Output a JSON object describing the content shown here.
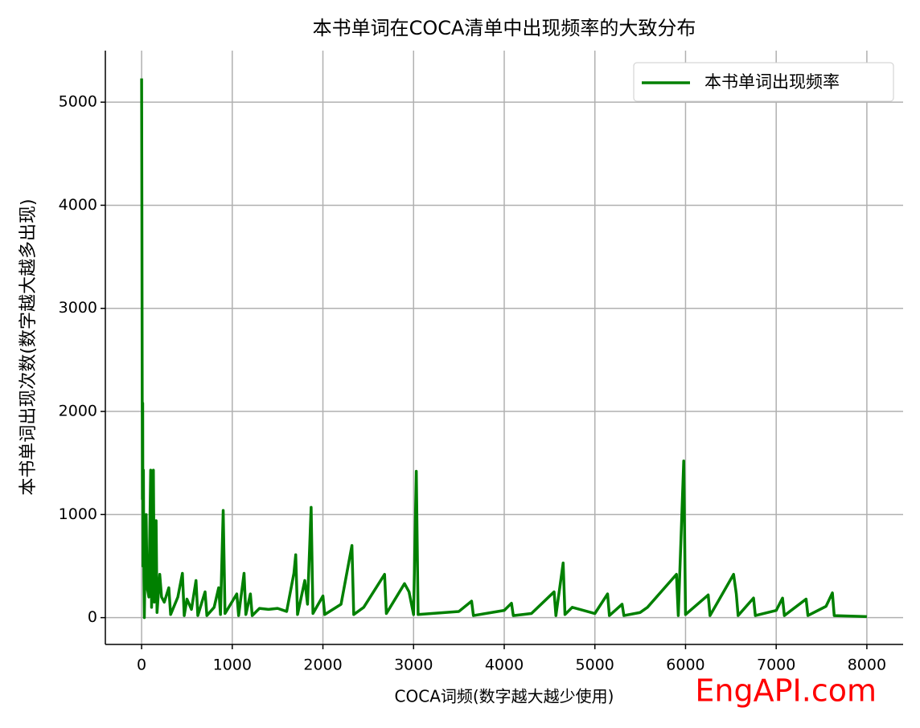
{
  "chart_data": {
    "type": "line",
    "title": "本书单词在COCA清单中出现频率的大致分布",
    "xlabel": "COCA词频(数字越大越少使用)",
    "ylabel": "本书单词出现次数(数字越大越多出现)",
    "watermark": "EngAPI.com",
    "x": [
      0,
      3,
      6,
      9,
      12,
      15,
      20,
      25,
      30,
      40,
      50,
      60,
      80,
      100,
      110,
      130,
      140,
      160,
      170,
      200,
      220,
      250,
      300,
      320,
      400,
      450,
      470,
      500,
      550,
      600,
      620,
      700,
      720,
      800,
      850,
      870,
      900,
      920,
      1050,
      1070,
      1130,
      1150,
      1200,
      1220,
      1300,
      1400,
      1500,
      1600,
      1680,
      1700,
      1720,
      1800,
      1830,
      1870,
      1890,
      2000,
      2020,
      2200,
      2320,
      2340,
      2450,
      2680,
      2700,
      2900,
      2950,
      3000,
      3030,
      3050,
      3200,
      3500,
      3640,
      3660,
      4000,
      4080,
      4100,
      4300,
      4550,
      4570,
      4650,
      4670,
      4750,
      5000,
      5140,
      5160,
      5300,
      5320,
      5500,
      5580,
      5900,
      5920,
      5980,
      6000,
      6250,
      6270,
      6530,
      6560,
      6580,
      6750,
      6770,
      7000,
      7070,
      7090,
      7330,
      7350,
      7550,
      7620,
      7640,
      8000
    ],
    "series": [
      {
        "name": "本书单词出现频率",
        "color": "#008000",
        "values": [
          5230,
          4000,
          2470,
          1150,
          2080,
          500,
          1430,
          400,
          0,
          600,
          1000,
          300,
          200,
          1430,
          100,
          1430,
          150,
          940,
          50,
          420,
          200,
          150,
          290,
          30,
          200,
          430,
          20,
          180,
          80,
          360,
          20,
          250,
          20,
          100,
          290,
          30,
          1040,
          40,
          230,
          20,
          430,
          30,
          230,
          20,
          90,
          80,
          90,
          60,
          430,
          610,
          30,
          360,
          130,
          1070,
          40,
          210,
          30,
          130,
          700,
          30,
          100,
          420,
          40,
          330,
          250,
          30,
          1420,
          30,
          40,
          60,
          160,
          20,
          70,
          140,
          20,
          40,
          250,
          20,
          530,
          30,
          100,
          40,
          230,
          20,
          130,
          20,
          50,
          100,
          420,
          20,
          1520,
          30,
          220,
          20,
          420,
          230,
          20,
          190,
          20,
          70,
          190,
          20,
          180,
          20,
          110,
          240,
          20,
          10
        ]
      }
    ],
    "xlim": [
      -400,
      8400
    ],
    "ylim": [
      -260,
      5500
    ],
    "xticks": [
      0,
      1000,
      2000,
      3000,
      4000,
      5000,
      6000,
      7000,
      8000
    ],
    "yticks": [
      0,
      1000,
      2000,
      3000,
      4000,
      5000
    ],
    "grid": true,
    "legend": "upper right"
  }
}
